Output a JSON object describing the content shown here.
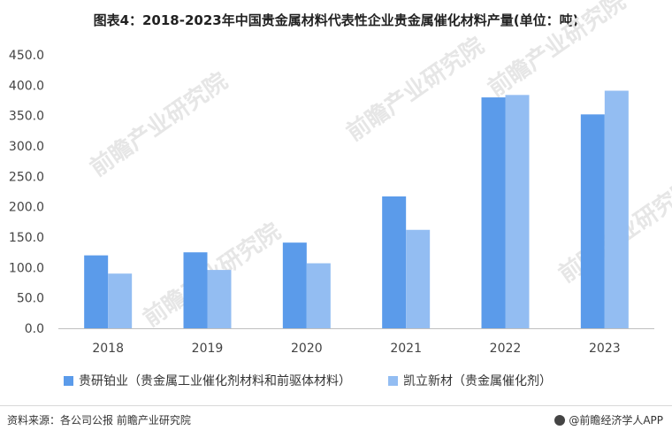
{
  "title": "图表4：2018-2023年中国贵金属材料代表性企业贵金属催化材料产量(单位：吨)",
  "source": "资料来源：各公司公报 前瞻产业研究院",
  "credit": "@前瞻经济学人APP",
  "watermark": "前瞻产业研究院",
  "colors": {
    "series1": "#5b9bea",
    "series2": "#93bdf2",
    "axis": "#bfbfbf"
  },
  "chart_data": {
    "type": "bar",
    "categories": [
      "2018",
      "2019",
      "2020",
      "2021",
      "2022",
      "2023"
    ],
    "series": [
      {
        "name": "贵研铂业（贵金属工业催化剂材料和前驱体材料）",
        "values": [
          120,
          125,
          141,
          217,
          380,
          352
        ]
      },
      {
        "name": "凯立新材（贵金属催化剂）",
        "values": [
          90,
          96,
          107,
          162,
          384,
          391
        ]
      }
    ],
    "yticks": [
      "0.0",
      "50.0",
      "100.0",
      "150.0",
      "200.0",
      "250.0",
      "300.0",
      "350.0",
      "400.0",
      "450.0"
    ],
    "ylim": [
      0,
      450
    ],
    "grid": false,
    "legend_position": "bottom"
  }
}
